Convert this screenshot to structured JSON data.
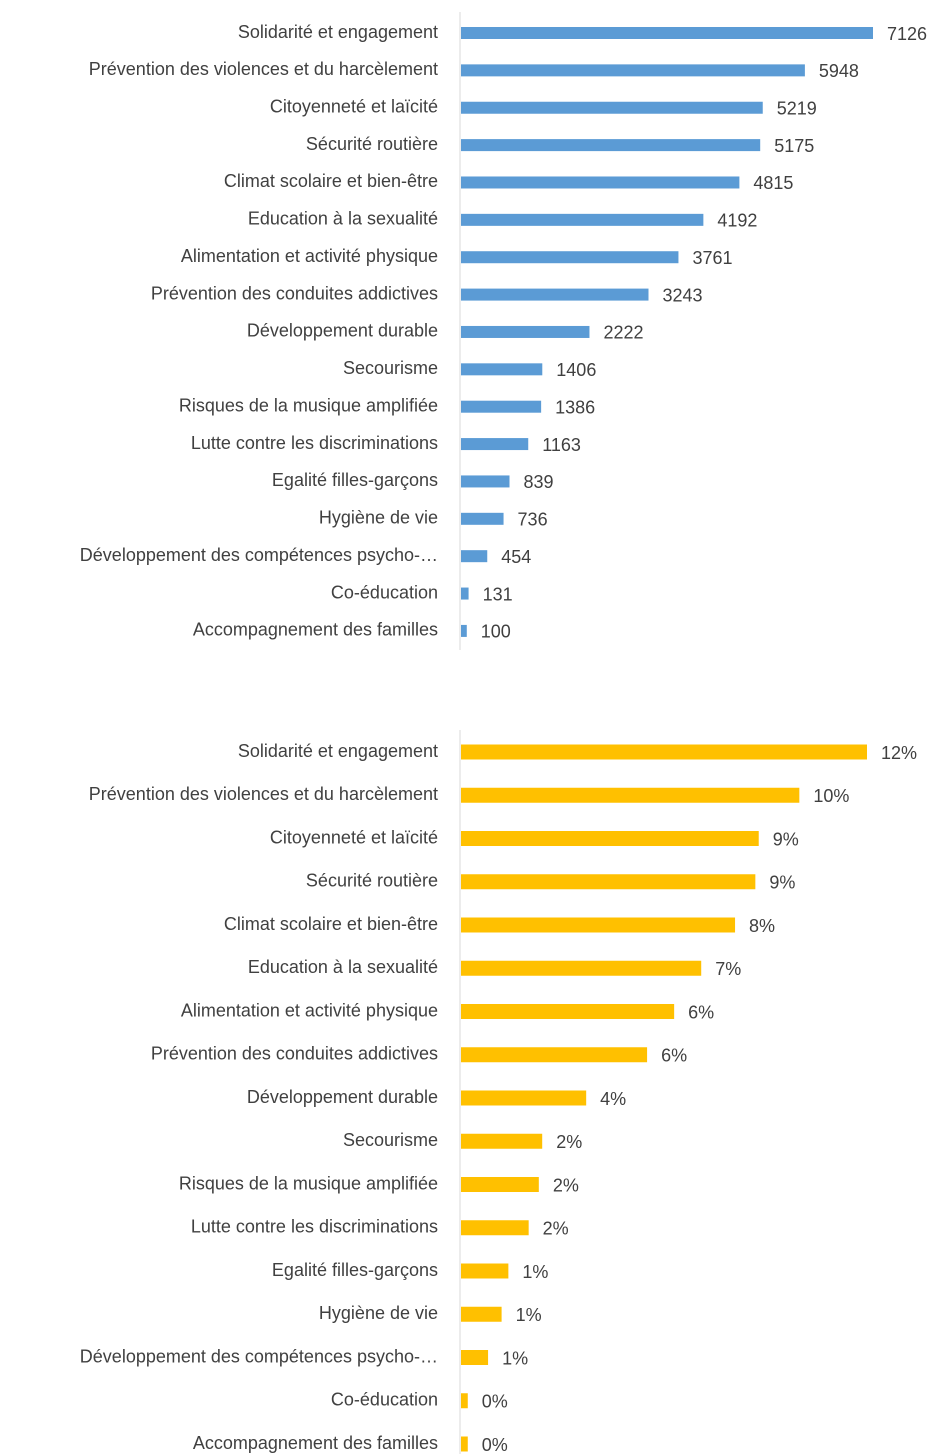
{
  "chart_data": [
    {
      "type": "bar",
      "orientation": "horizontal",
      "color": "#5b9bd5",
      "categories": [
        "Solidarité et engagement",
        "Prévention des violences et du harcèlement",
        "Citoyenneté et laïcité",
        "Sécurité routière",
        "Climat scolaire et bien-être",
        "Education à la sexualité",
        "Alimentation et activité physique",
        "Prévention des conduites addictives",
        "Développement durable",
        "Secourisme",
        "Risques de la musique amplifiée",
        "Lutte contre les discriminations",
        "Egalité filles-garçons",
        "Hygiène de vie",
        "Développement des compétences psycho-…",
        "Co-éducation",
        "Accompagnement des familles"
      ],
      "values": [
        7126,
        5948,
        5219,
        5175,
        4815,
        4192,
        3761,
        3243,
        2222,
        1406,
        1386,
        1163,
        839,
        736,
        454,
        131,
        100
      ]
    },
    {
      "type": "bar",
      "orientation": "horizontal",
      "color": "#ffc000",
      "categories": [
        "Solidarité et engagement",
        "Prévention des violences et du harcèlement",
        "Citoyenneté et laïcité",
        "Sécurité routière",
        "Climat scolaire et bien-être",
        "Education à la sexualité",
        "Alimentation et activité physique",
        "Prévention des conduites addictives",
        "Développement durable",
        "Secourisme",
        "Risques de la musique amplifiée",
        "Lutte contre les discriminations",
        "Egalité filles-garçons",
        "Hygiène de vie",
        "Développement des compétences psycho-…",
        "Co-éducation",
        "Accompagnement des familles"
      ],
      "values": [
        12.0,
        10.0,
        8.8,
        8.7,
        8.1,
        7.1,
        6.3,
        5.5,
        3.7,
        2.4,
        2.3,
        2.0,
        1.4,
        1.2,
        0.8,
        0.2,
        0.2
      ],
      "value_labels": [
        "12%",
        "10%",
        "9%",
        "9%",
        "8%",
        "7%",
        "6%",
        "6%",
        "4%",
        "2%",
        "2%",
        "2%",
        "1%",
        "1%",
        "1%",
        "0%",
        "0%"
      ]
    }
  ]
}
